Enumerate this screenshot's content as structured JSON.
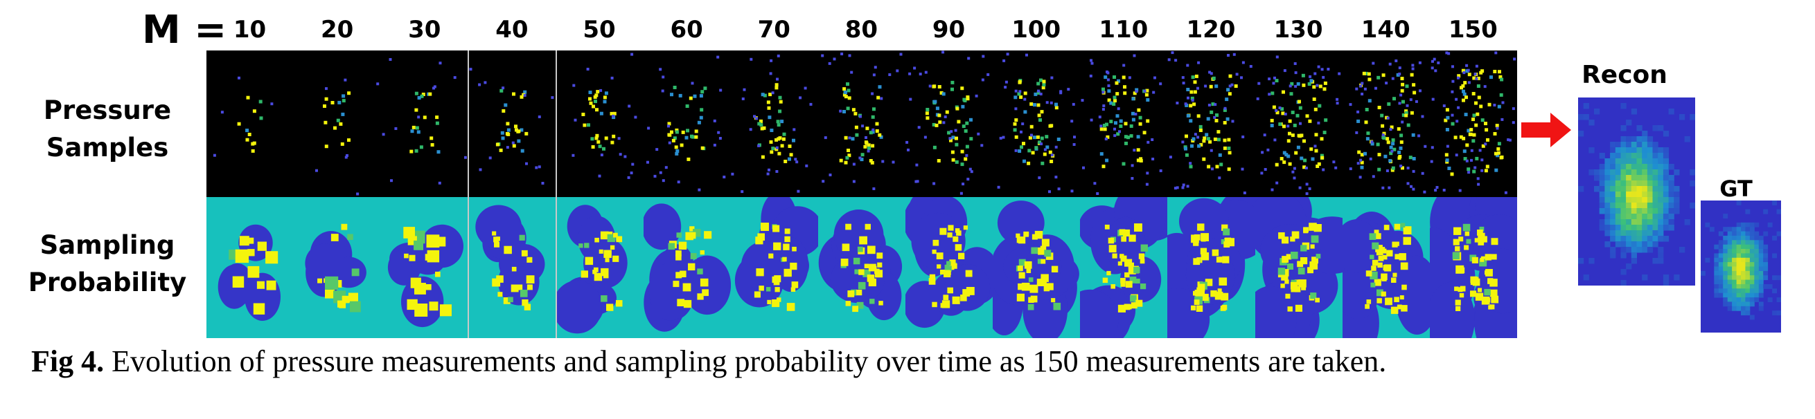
{
  "figure": {
    "m_prefix": "M =",
    "m_values": [
      "10",
      "20",
      "30",
      "40",
      "50",
      "60",
      "70",
      "80",
      "90",
      "100",
      "110",
      "120",
      "130",
      "140",
      "150"
    ],
    "row_labels": {
      "pressure": [
        "Pressure",
        "Samples"
      ],
      "sampling": [
        "Sampling",
        "Probability"
      ]
    },
    "recon_label": "Recon",
    "gt_label": "GT",
    "colors": {
      "sample_background": "#000000",
      "probability_background": "#17c1bd",
      "probability_low": "#3535c8",
      "probability_high": "#f4f40c",
      "arrow": "#f01414",
      "separator": "#c9c9c9"
    }
  },
  "caption": {
    "label": "Fig 4.",
    "text": "Evolution of pressure measurements and sampling probability over time as 150 measurements are taken."
  }
}
